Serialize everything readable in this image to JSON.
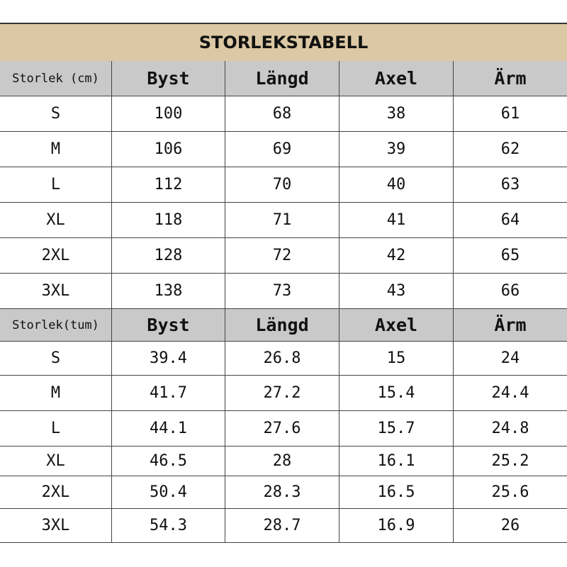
{
  "title": "STORLEKSTABELL",
  "tables": [
    {
      "header": [
        "Storlek (cm)",
        "Byst",
        "Längd",
        "Axel",
        "Ärm"
      ],
      "rows": [
        [
          "S",
          100,
          68,
          38,
          61
        ],
        [
          "M",
          106,
          69,
          39,
          62
        ],
        [
          "L",
          112,
          70,
          40,
          63
        ],
        [
          "XL",
          118,
          71,
          41,
          64
        ],
        [
          "2XL",
          128,
          72,
          42,
          65
        ],
        [
          "3XL",
          138,
          73,
          43,
          66
        ]
      ]
    },
    {
      "header": [
        "Storlek(tum)",
        "Byst",
        "Längd",
        "Axel",
        "Ärm"
      ],
      "rows": [
        [
          "S",
          39.4,
          26.8,
          15,
          24
        ],
        [
          "M",
          41.7,
          27.2,
          15.4,
          24.4
        ],
        [
          "L",
          44.1,
          27.6,
          15.7,
          24.8
        ],
        [
          "XL",
          46.5,
          28,
          16.1,
          25.2
        ],
        [
          "2XL",
          50.4,
          28.3,
          16.5,
          25.6
        ],
        [
          "3XL",
          54.3,
          28.7,
          16.9,
          26
        ]
      ]
    }
  ]
}
